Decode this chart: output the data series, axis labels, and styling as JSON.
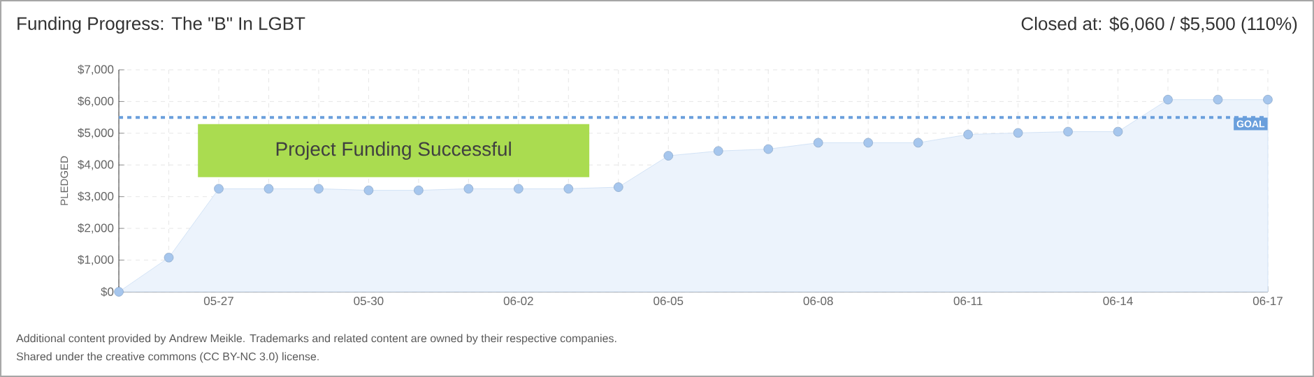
{
  "chart_data": {
    "type": "area",
    "title": "Funding Progress: The \"B\" In LGBT",
    "subtitle": "Closed at:  $6,060 /  $5,500 (110%)",
    "ylabel": "PLEDGED",
    "categories": [
      null,
      null,
      "05-27",
      null,
      null,
      "05-30",
      null,
      null,
      "06-02",
      null,
      null,
      "06-05",
      null,
      null,
      "06-08",
      null,
      null,
      "06-11",
      null,
      null,
      "06-14",
      null,
      null,
      "06-17"
    ],
    "series": [
      {
        "color": "#ecf3fc",
        "values": [
          0,
          1080,
          3250,
          3250,
          3250,
          3200,
          3200,
          3250,
          3250,
          3250,
          3300,
          4290,
          4440,
          4500,
          4700,
          4700,
          4700,
          4960,
          5010,
          5050,
          5050,
          6060,
          6060,
          6060
        ]
      }
    ],
    "ylim": [
      0,
      7000
    ],
    "yticks": [
      {
        "value": 0,
        "label": "$0"
      },
      {
        "value": 1000,
        "label": "$1,000"
      },
      {
        "value": 2000,
        "label": "$2,000"
      },
      {
        "value": 3000,
        "label": "$3,000"
      },
      {
        "value": 4000,
        "label": "$4,000"
      },
      {
        "value": 5000,
        "label": "$5,000"
      },
      {
        "value": 6000,
        "label": "$6,000"
      },
      {
        "value": 7000,
        "label": "$7,000"
      }
    ],
    "grid": true,
    "marker": "circle",
    "ref_lines": [
      {
        "axis": "y",
        "value": 5500,
        "label": "GOAL",
        "color": "#6a9fdc",
        "line_style": "dashed"
      }
    ],
    "annotations": [
      "Project Funding Successful",
      "Additional content provided by Andrew Meikle. Trademarks and related content are owned by their respective companies.",
      "Shared under the creative commons (CC BY-NC 3.0) license."
    ]
  }
}
